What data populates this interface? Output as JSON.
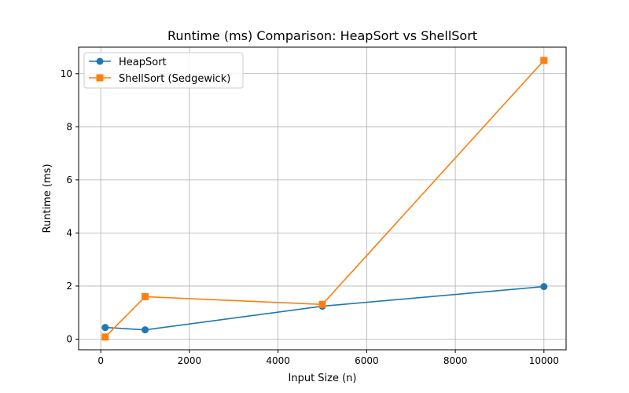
{
  "chart_data": {
    "type": "line",
    "title": "Runtime (ms) Comparison: HeapSort vs ShellSort",
    "xlabel": "Input Size (n)",
    "ylabel": "Runtime (ms)",
    "x": [
      100,
      1000,
      5000,
      10000
    ],
    "xlim": [
      -500,
      10500
    ],
    "ylim": [
      -0.4,
      11.0
    ],
    "xticks": [
      0,
      2000,
      4000,
      6000,
      8000,
      10000
    ],
    "yticks": [
      0,
      2,
      4,
      6,
      8,
      10
    ],
    "grid": true,
    "legend_position": "top-left",
    "series": [
      {
        "name": "HeapSort",
        "values": [
          0.44,
          0.35,
          1.24,
          1.98
        ],
        "color": "#1f77b4",
        "marker": "circle"
      },
      {
        "name": "ShellSort (Sedgewick)",
        "values": [
          0.08,
          1.6,
          1.31,
          10.5
        ],
        "color": "#ff7f0e",
        "marker": "square"
      }
    ]
  }
}
